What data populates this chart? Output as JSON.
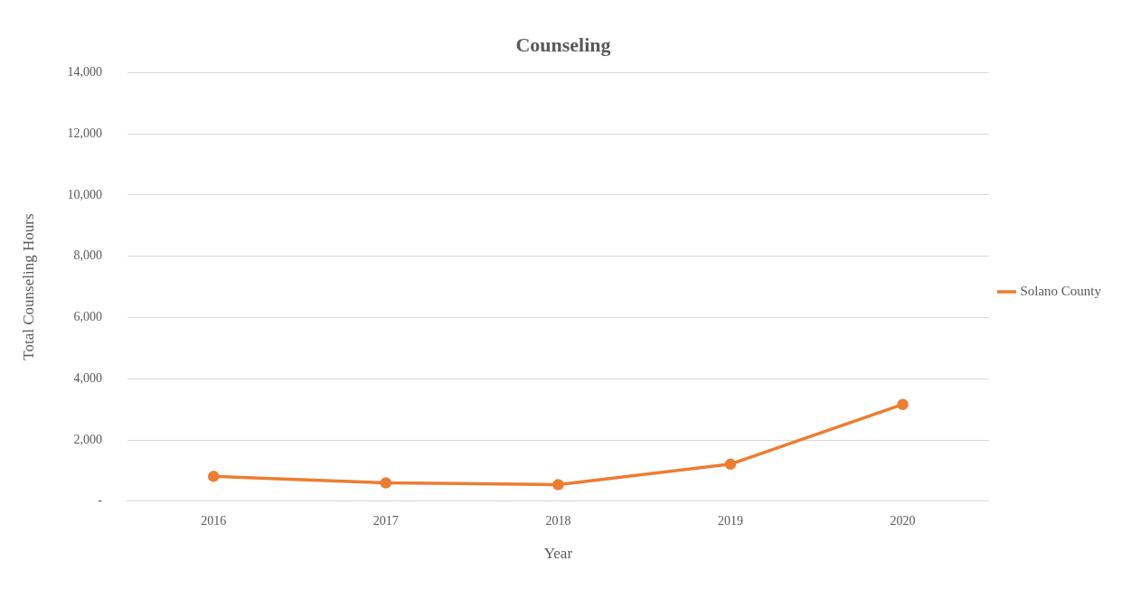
{
  "chart_data": {
    "type": "line",
    "title": "Counseling",
    "xlabel": "Year",
    "ylabel": "Total Counseling Hours",
    "categories": [
      "2016",
      "2017",
      "2018",
      "2019",
      "2020"
    ],
    "series": [
      {
        "name": "Solano County",
        "color": "#ed7d31",
        "values": [
          810,
          600,
          540,
          1210,
          3160
        ]
      }
    ],
    "ylim": [
      0,
      14000
    ],
    "yticks": [
      {
        "value": 0,
        "label": "-"
      },
      {
        "value": 2000,
        "label": "2,000"
      },
      {
        "value": 4000,
        "label": "4,000"
      },
      {
        "value": 6000,
        "label": "6,000"
      },
      {
        "value": 8000,
        "label": "8,000"
      },
      {
        "value": 10000,
        "label": "10,000"
      },
      {
        "value": 12000,
        "label": "12,000"
      },
      {
        "value": 14000,
        "label": "14,000"
      }
    ],
    "grid": "y",
    "legend": "right",
    "marker": "circle",
    "line_style": "solid"
  }
}
